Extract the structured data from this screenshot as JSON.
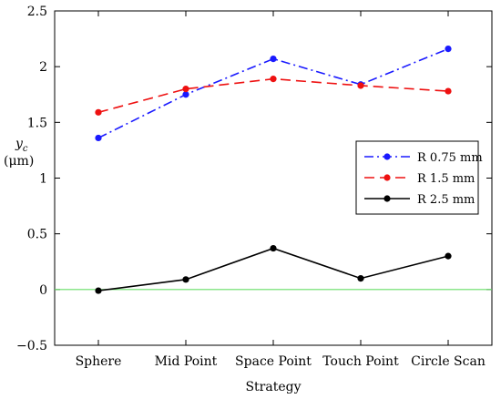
{
  "chart_data": {
    "type": "line",
    "title": "",
    "xlabel": "Strategy",
    "ylabel": "y_c",
    "ylabel_parts": {
      "symbol": "y",
      "subscript": "c",
      "unit": "(μm)"
    },
    "categories": [
      "Sphere",
      "Mid Point",
      "Space Point",
      "Touch Point",
      "Circle Scan"
    ],
    "ylim": [
      -0.5,
      2.5
    ],
    "yticks": [
      -0.5,
      0,
      0.5,
      1,
      1.5,
      2,
      2.5
    ],
    "ytick_labels": [
      "−0.5",
      "0",
      "0.5",
      "1",
      "1.5",
      "2",
      "2.5"
    ],
    "grid": false,
    "legend_position": "right",
    "reference_line": {
      "y": 0,
      "color": "#66dd66"
    },
    "series": [
      {
        "name": "R 0.75 mm",
        "color": "#1a1aff",
        "dash": "dashdot",
        "values": [
          1.36,
          1.75,
          2.07,
          1.84,
          2.16
        ]
      },
      {
        "name": "R 1.5 mm",
        "color": "#ee1111",
        "dash": "dashed",
        "values": [
          1.59,
          1.8,
          1.89,
          1.83,
          1.78
        ]
      },
      {
        "name": "R 2.5 mm",
        "color": "#000000",
        "dash": "solid",
        "values": [
          -0.01,
          0.09,
          0.37,
          0.1,
          0.3
        ]
      }
    ]
  }
}
